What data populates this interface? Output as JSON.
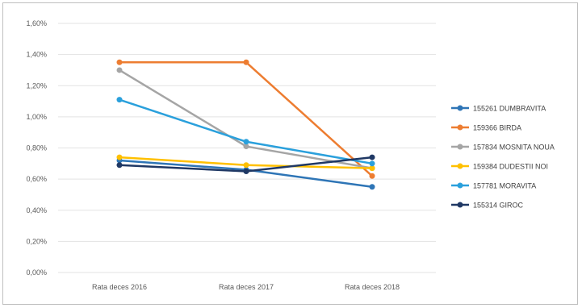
{
  "chart_data": {
    "type": "line",
    "title": "",
    "xlabel": "",
    "ylabel": "",
    "categories": [
      "Rata deces 2016",
      "Rata deces 2017",
      "Rata deces 2018"
    ],
    "ylim": [
      0,
      1.6
    ],
    "y_ticks": [
      "0,00%",
      "0,20%",
      "0,40%",
      "0,60%",
      "0,80%",
      "1,00%",
      "1,20%",
      "1,40%",
      "1,60%"
    ],
    "grid": true,
    "legend_position": "right",
    "series": [
      {
        "name": "155261 DUMBRAVITA",
        "color": "#2e75b6",
        "values": [
          0.72,
          0.66,
          0.55
        ]
      },
      {
        "name": "159366 BIRDA",
        "color": "#ed7d31",
        "values": [
          1.35,
          1.35,
          0.62
        ]
      },
      {
        "name": "157834 MOSNITA NOUA",
        "color": "#a5a5a5",
        "values": [
          1.3,
          0.81,
          0.67
        ]
      },
      {
        "name": "159384 DUDESTII NOI",
        "color": "#ffc000",
        "values": [
          0.74,
          0.69,
          0.67
        ]
      },
      {
        "name": "157781 MORAVITA",
        "color": "#2aa0dc",
        "values": [
          1.11,
          0.84,
          0.7
        ]
      },
      {
        "name": "155314 GIROC",
        "color": "#1f3864",
        "values": [
          0.69,
          0.65,
          0.74
        ]
      }
    ]
  }
}
